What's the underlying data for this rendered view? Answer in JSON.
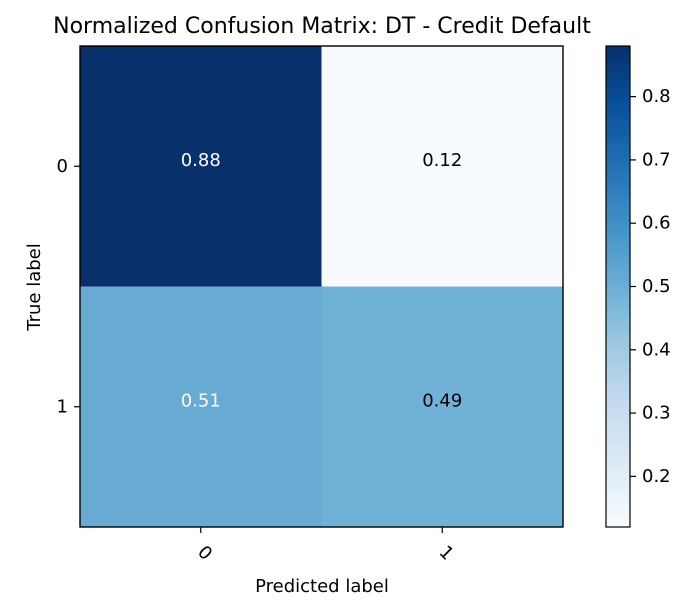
{
  "chart_data": {
    "type": "heatmap",
    "title": "Normalized Confusion Matrix: DT - Credit Default",
    "xlabel": "Predicted label",
    "ylabel": "True label",
    "x_categories": [
      "0",
      "1"
    ],
    "y_categories": [
      "0",
      "1"
    ],
    "values": [
      [
        0.88,
        0.12
      ],
      [
        0.51,
        0.49
      ]
    ],
    "value_labels": [
      [
        "0.88",
        "0.12"
      ],
      [
        "0.51",
        "0.49"
      ]
    ],
    "colormap": "Blues",
    "colorbar": {
      "range": [
        0.12,
        0.88
      ],
      "ticks": [
        0.2,
        0.3,
        0.4,
        0.5,
        0.6,
        0.7,
        0.8
      ],
      "tick_labels": [
        "0.2",
        "0.3",
        "0.4",
        "0.5",
        "0.6",
        "0.7",
        "0.8"
      ]
    },
    "grid": false,
    "legend": "colorbar-right"
  }
}
